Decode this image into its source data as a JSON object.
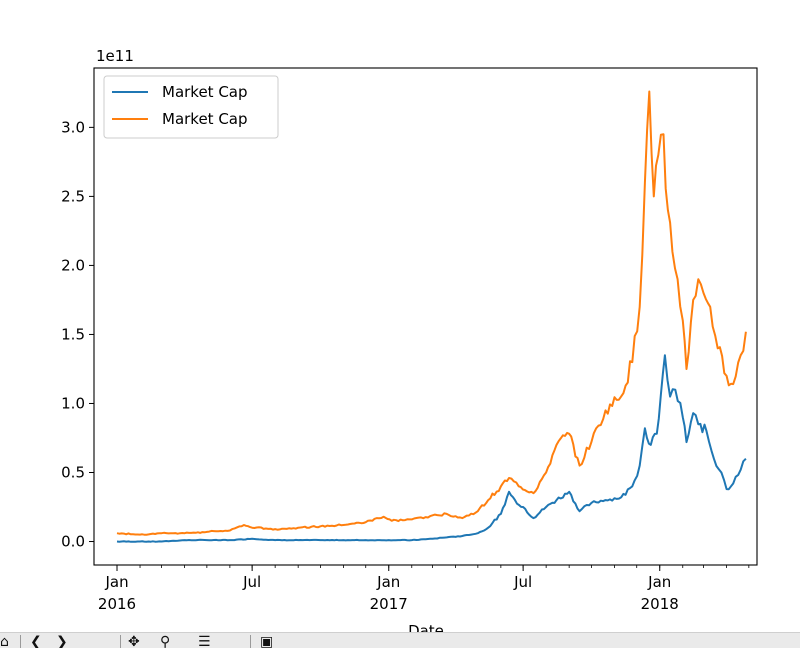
{
  "chart_data": {
    "type": "line",
    "title": "",
    "xlabel": "Date",
    "ylabel": "",
    "offset_label": "1e11",
    "xlim": [
      "2015-12-01",
      "2018-05-12"
    ],
    "ylim": [
      -0.17,
      3.43
    ],
    "grid": false,
    "legend": {
      "location": "top-left",
      "entries": [
        "Market Cap",
        "Market Cap"
      ]
    },
    "x_ticks": [
      {
        "date": "2016-01-01",
        "label": "Jan",
        "sublabel": "2016"
      },
      {
        "date": "2016-07-01",
        "label": "Jul",
        "sublabel": ""
      },
      {
        "date": "2017-01-01",
        "label": "Jan",
        "sublabel": "2017"
      },
      {
        "date": "2017-07-01",
        "label": "Jul",
        "sublabel": ""
      },
      {
        "date": "2018-01-01",
        "label": "Jan",
        "sublabel": "2018"
      }
    ],
    "y_ticks": [
      {
        "value": 0.0,
        "label": "0.0"
      },
      {
        "value": 0.5,
        "label": "0.5"
      },
      {
        "value": 1.0,
        "label": "1.0"
      },
      {
        "value": 1.5,
        "label": "1.5"
      },
      {
        "value": 2.0,
        "label": "2.0"
      },
      {
        "value": 2.5,
        "label": "2.5"
      },
      {
        "value": 3.0,
        "label": "3.0"
      }
    ],
    "series": [
      {
        "name": "Market Cap",
        "color": "#1f77b4",
        "points": [
          [
            "2016-01-01",
            0.0
          ],
          [
            "2016-02-01",
            0.0
          ],
          [
            "2016-03-01",
            0.0
          ],
          [
            "2016-04-01",
            0.01
          ],
          [
            "2016-05-01",
            0.01
          ],
          [
            "2016-06-01",
            0.01
          ],
          [
            "2016-07-01",
            0.02
          ],
          [
            "2016-08-01",
            0.01
          ],
          [
            "2016-09-01",
            0.01
          ],
          [
            "2016-10-01",
            0.01
          ],
          [
            "2016-11-01",
            0.01
          ],
          [
            "2016-12-01",
            0.01
          ],
          [
            "2017-01-01",
            0.01
          ],
          [
            "2017-02-01",
            0.01
          ],
          [
            "2017-03-01",
            0.02
          ],
          [
            "2017-03-20",
            0.03
          ],
          [
            "2017-04-10",
            0.04
          ],
          [
            "2017-05-01",
            0.06
          ],
          [
            "2017-05-15",
            0.1
          ],
          [
            "2017-06-01",
            0.2
          ],
          [
            "2017-06-12",
            0.36
          ],
          [
            "2017-06-20",
            0.3
          ],
          [
            "2017-07-01",
            0.25
          ],
          [
            "2017-07-15",
            0.17
          ],
          [
            "2017-08-01",
            0.25
          ],
          [
            "2017-08-15",
            0.3
          ],
          [
            "2017-09-01",
            0.36
          ],
          [
            "2017-09-15",
            0.22
          ],
          [
            "2017-10-01",
            0.28
          ],
          [
            "2017-10-20",
            0.3
          ],
          [
            "2017-11-10",
            0.32
          ],
          [
            "2017-11-25",
            0.4
          ],
          [
            "2017-12-05",
            0.55
          ],
          [
            "2017-12-12",
            0.82
          ],
          [
            "2017-12-20",
            0.7
          ],
          [
            "2017-12-28",
            0.78
          ],
          [
            "2018-01-08",
            1.35
          ],
          [
            "2018-01-15",
            1.05
          ],
          [
            "2018-01-22",
            1.1
          ],
          [
            "2018-02-01",
            0.9
          ],
          [
            "2018-02-06",
            0.72
          ],
          [
            "2018-02-15",
            0.93
          ],
          [
            "2018-02-22",
            0.85
          ],
          [
            "2018-03-05",
            0.8
          ],
          [
            "2018-03-15",
            0.6
          ],
          [
            "2018-03-25",
            0.5
          ],
          [
            "2018-04-01",
            0.38
          ],
          [
            "2018-04-10",
            0.42
          ],
          [
            "2018-04-20",
            0.52
          ],
          [
            "2018-04-27",
            0.6
          ]
        ]
      },
      {
        "name": "Market Cap",
        "color": "#ff7f0e",
        "points": [
          [
            "2016-01-01",
            0.06
          ],
          [
            "2016-02-01",
            0.05
          ],
          [
            "2016-03-01",
            0.06
          ],
          [
            "2016-04-01",
            0.06
          ],
          [
            "2016-05-01",
            0.07
          ],
          [
            "2016-06-01",
            0.08
          ],
          [
            "2016-06-20",
            0.12
          ],
          [
            "2016-07-01",
            0.1
          ],
          [
            "2016-08-01",
            0.09
          ],
          [
            "2016-09-01",
            0.1
          ],
          [
            "2016-10-01",
            0.11
          ],
          [
            "2016-11-01",
            0.12
          ],
          [
            "2016-12-01",
            0.14
          ],
          [
            "2016-12-25",
            0.18
          ],
          [
            "2017-01-05",
            0.15
          ],
          [
            "2017-02-01",
            0.16
          ],
          [
            "2017-03-01",
            0.19
          ],
          [
            "2017-03-20",
            0.2
          ],
          [
            "2017-04-10",
            0.17
          ],
          [
            "2017-05-01",
            0.22
          ],
          [
            "2017-05-15",
            0.3
          ],
          [
            "2017-06-01",
            0.4
          ],
          [
            "2017-06-12",
            0.46
          ],
          [
            "2017-06-25",
            0.4
          ],
          [
            "2017-07-15",
            0.35
          ],
          [
            "2017-08-01",
            0.5
          ],
          [
            "2017-08-15",
            0.7
          ],
          [
            "2017-09-01",
            0.78
          ],
          [
            "2017-09-15",
            0.55
          ],
          [
            "2017-10-01",
            0.72
          ],
          [
            "2017-10-20",
            0.95
          ],
          [
            "2017-11-10",
            1.05
          ],
          [
            "2017-11-25",
            1.3
          ],
          [
            "2017-12-05",
            1.7
          ],
          [
            "2017-12-12",
            2.6
          ],
          [
            "2017-12-18",
            3.26
          ],
          [
            "2017-12-24",
            2.5
          ],
          [
            "2017-12-30",
            2.8
          ],
          [
            "2018-01-06",
            2.95
          ],
          [
            "2018-01-12",
            2.4
          ],
          [
            "2018-01-18",
            2.1
          ],
          [
            "2018-01-25",
            1.9
          ],
          [
            "2018-02-01",
            1.6
          ],
          [
            "2018-02-06",
            1.25
          ],
          [
            "2018-02-15",
            1.75
          ],
          [
            "2018-02-22",
            1.9
          ],
          [
            "2018-03-01",
            1.8
          ],
          [
            "2018-03-10",
            1.7
          ],
          [
            "2018-03-20",
            1.4
          ],
          [
            "2018-04-01",
            1.2
          ],
          [
            "2018-04-10",
            1.14
          ],
          [
            "2018-04-20",
            1.35
          ],
          [
            "2018-04-27",
            1.52
          ]
        ]
      }
    ]
  },
  "toolbar": {
    "buttons": [
      {
        "name": "home-icon",
        "glyph": "⌂"
      },
      {
        "name": "back-icon",
        "glyph": "❮"
      },
      {
        "name": "forward-icon",
        "glyph": "❯"
      },
      {
        "name": "pan-icon",
        "glyph": "✥"
      },
      {
        "name": "zoom-icon",
        "glyph": "⚲"
      },
      {
        "name": "configure-icon",
        "glyph": "☰"
      },
      {
        "name": "save-icon",
        "glyph": "▣"
      }
    ]
  }
}
